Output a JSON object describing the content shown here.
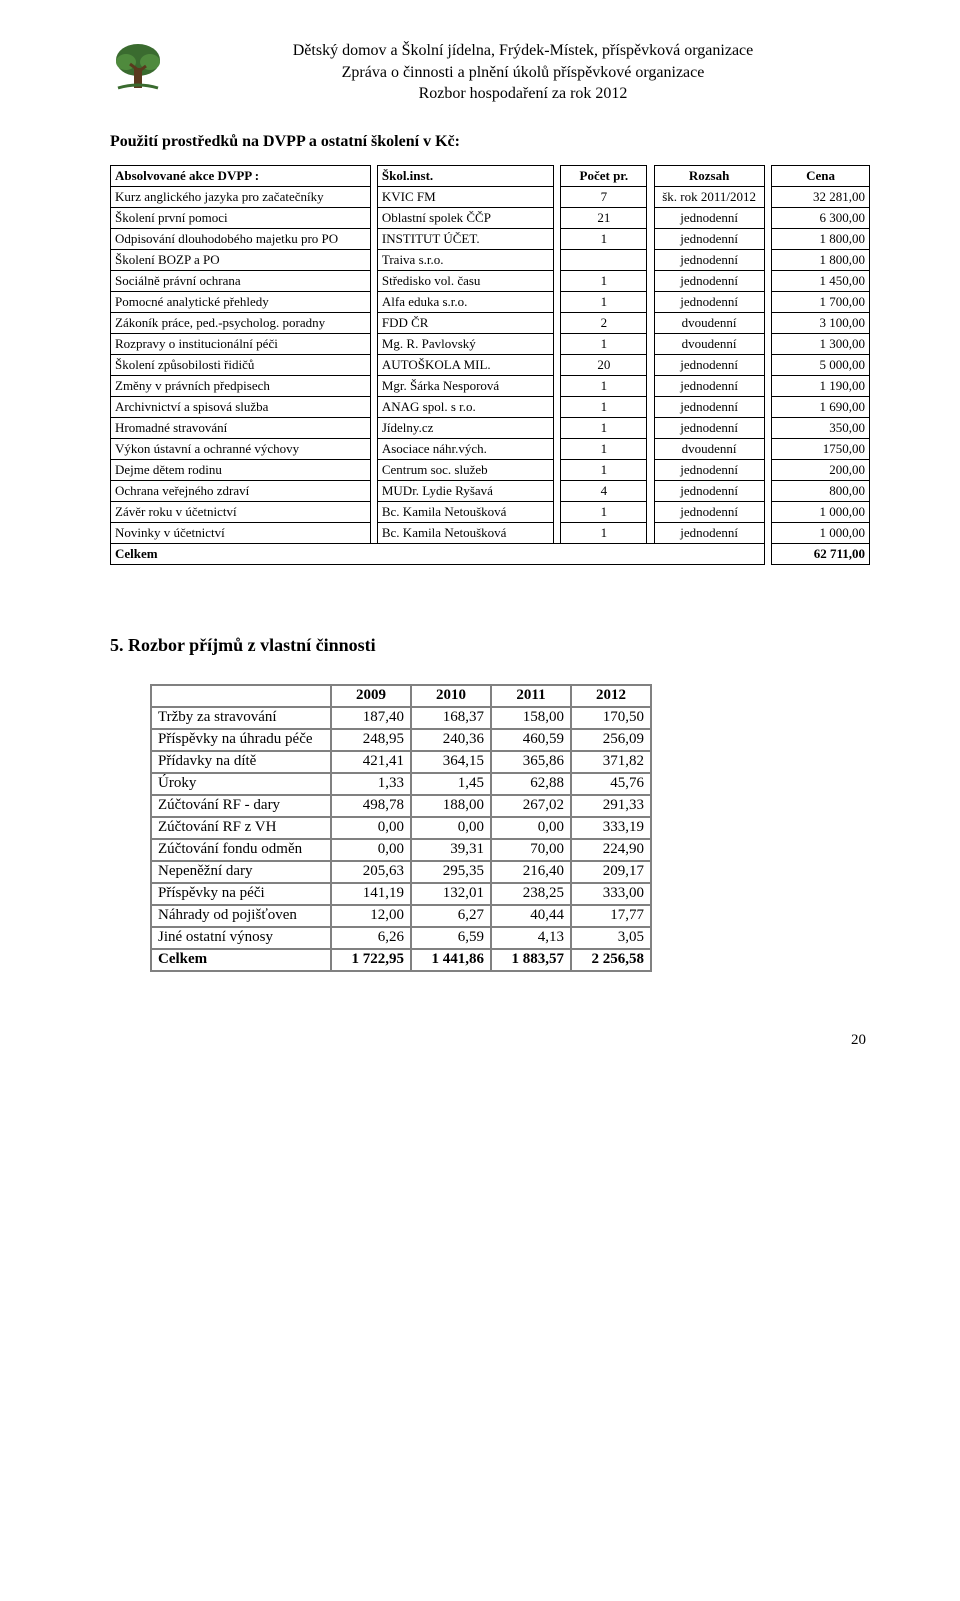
{
  "header": {
    "line1": "Dětský domov a Školní jídelna, Frýdek-Místek, příspěvková organizace",
    "line2": "Zpráva o činnosti a plnění úkolů příspěvkové organizace",
    "line3": "Rozbor hospodaření za rok 2012"
  },
  "section1_title": "Použití prostředků na DVPP a ostatní školení v Kč:",
  "t1": {
    "head": {
      "desc": "Absolvované akce DVPP :",
      "inst": "Škol.inst.",
      "cnt": "Počet pr.",
      "scope": "Rozsah",
      "price": "Cena"
    },
    "rows": [
      {
        "desc": "Kurz anglického jazyka pro začatečníky",
        "inst": "KVIC FM",
        "cnt": "7",
        "scope": "šk. rok 2011/2012",
        "price": "32 281,00"
      },
      {
        "desc": "Školení první pomoci",
        "inst": "Oblastní spolek ČČP",
        "cnt": "21",
        "scope": "jednodenní",
        "price": "6 300,00"
      },
      {
        "desc": "Odpisování dlouhodobého majetku pro PO",
        "inst": "INSTITUT ÚČET.",
        "cnt": "1",
        "scope": "jednodenní",
        "price": "1 800,00"
      },
      {
        "desc": "Školení BOZP a PO",
        "inst": "Traiva s.r.o.",
        "cnt": "",
        "scope": "jednodenní",
        "price": "1 800,00"
      },
      {
        "desc": "Sociálně právní ochrana",
        "inst": "Středisko vol. času",
        "cnt": "1",
        "scope": "jednodenní",
        "price": "1 450,00"
      },
      {
        "desc": "Pomocné analytické přehledy",
        "inst": "Alfa eduka s.r.o.",
        "cnt": "1",
        "scope": "jednodenní",
        "price": "1 700,00"
      },
      {
        "desc": "Zákoník práce, ped.-psycholog. poradny",
        "inst": "FDD ČR",
        "cnt": "2",
        "scope": "dvoudenní",
        "price": "3 100,00"
      },
      {
        "desc": "Rozpravy o institucionální péči",
        "inst": "Mg. R. Pavlovský",
        "cnt": "1",
        "scope": "dvoudenní",
        "price": "1 300,00"
      },
      {
        "desc": "Školení způsobilosti řidičů",
        "inst": "AUTOŠKOLA MIL.",
        "cnt": "20",
        "scope": "jednodenní",
        "price": "5 000,00"
      },
      {
        "desc": "Změny v právních předpisech",
        "inst": "Mgr. Šárka Nesporová",
        "cnt": "1",
        "scope": "jednodenní",
        "price": "1 190,00"
      },
      {
        "desc": "Archivnictví a spisová služba",
        "inst": "ANAG spol. s r.o.",
        "cnt": "1",
        "scope": "jednodenní",
        "price": "1 690,00"
      },
      {
        "desc": "Hromadné stravování",
        "inst": "Jídelny.cz",
        "cnt": "1",
        "scope": "jednodenní",
        "price": "350,00"
      },
      {
        "desc": "Výkon ústavní a ochranné výchovy",
        "inst": "Asociace náhr.vých.",
        "cnt": "1",
        "scope": "dvoudenní",
        "price": "1750,00"
      },
      {
        "desc": "Dejme dětem rodinu",
        "inst": "Centrum soc. služeb",
        "cnt": "1",
        "scope": "jednodenní",
        "price": "200,00"
      },
      {
        "desc": "Ochrana veřejného zdraví",
        "inst": "MUDr. Lydie Ryšavá",
        "cnt": "4",
        "scope": "jednodenní",
        "price": "800,00"
      },
      {
        "desc": "Závěr roku v účetnictví",
        "inst": "Bc. Kamila Netoušková",
        "cnt": "1",
        "scope": "jednodenní",
        "price": "1 000,00"
      },
      {
        "desc": "Novinky v účetnictví",
        "inst": "Bc. Kamila Netoušková",
        "cnt": "1",
        "scope": "jednodenní",
        "price": "1 000,00"
      }
    ],
    "total_label": "Celkem",
    "total_value": "62 711,00"
  },
  "section2_title": "5. Rozbor příjmů z vlastní činnosti",
  "t2": {
    "years": [
      "2009",
      "2010",
      "2011",
      "2012"
    ],
    "rows": [
      {
        "label": "Tržby za stravování",
        "vals": [
          "187,40",
          "168,37",
          "158,00",
          "170,50"
        ]
      },
      {
        "label": "Příspěvky na úhradu péče",
        "vals": [
          "248,95",
          "240,36",
          "460,59",
          "256,09"
        ]
      },
      {
        "label": "Přídavky na dítě",
        "vals": [
          "421,41",
          "364,15",
          "365,86",
          "371,82"
        ]
      },
      {
        "label": "Úroky",
        "vals": [
          "1,33",
          "1,45",
          "62,88",
          "45,76"
        ]
      },
      {
        "label": "Zúčtování RF - dary",
        "vals": [
          "498,78",
          "188,00",
          "267,02",
          "291,33"
        ]
      },
      {
        "label": "Zúčtování RF z VH",
        "vals": [
          "0,00",
          "0,00",
          "0,00",
          "333,19"
        ]
      },
      {
        "label": "Zúčtování fondu odměn",
        "vals": [
          "0,00",
          "39,31",
          "70,00",
          "224,90"
        ]
      },
      {
        "label": "Nepeněžní dary",
        "vals": [
          "205,63",
          "295,35",
          "216,40",
          "209,17"
        ]
      },
      {
        "label": "Příspěvky na péči",
        "vals": [
          "141,19",
          "132,01",
          "238,25",
          "333,00"
        ]
      },
      {
        "label": "Náhrady od pojišťoven",
        "vals": [
          "12,00",
          "6,27",
          "40,44",
          "17,77"
        ]
      },
      {
        "label": "Jiné ostatní výnosy",
        "vals": [
          "6,26",
          "6,59",
          "4,13",
          "3,05"
        ]
      }
    ],
    "total": {
      "label": "Celkem",
      "vals": [
        "1 722,95",
        "1 441,86",
        "1 883,57",
        "2 256,58"
      ]
    }
  },
  "page_number": "20"
}
